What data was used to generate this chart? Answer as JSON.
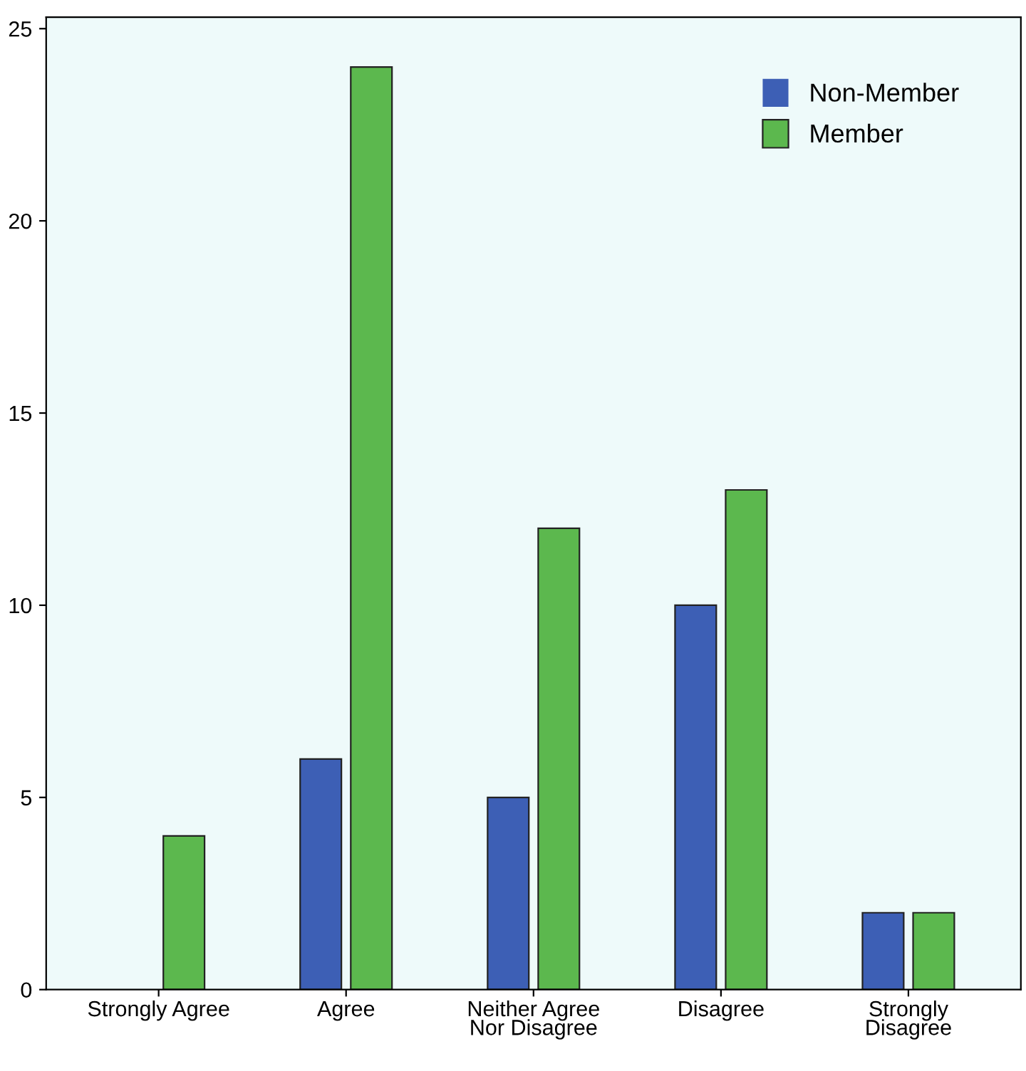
{
  "chart_data": {
    "type": "bar",
    "categories": [
      "Strongly Agree",
      "Agree",
      "Neither Agree\nNor Disagree",
      "Disagree",
      "Strongly\nDisagree"
    ],
    "series": [
      {
        "name": "Non-Member",
        "color": "#3d5fb5",
        "values": [
          0,
          6,
          5,
          10,
          2
        ]
      },
      {
        "name": "Member",
        "color": "#5cb84e",
        "values": [
          4,
          24,
          12,
          13,
          2
        ]
      }
    ],
    "ylim": [
      0,
      25.3
    ],
    "yticks": [
      0,
      5,
      10,
      15,
      20,
      25
    ],
    "grid": false,
    "legend": "top right"
  }
}
